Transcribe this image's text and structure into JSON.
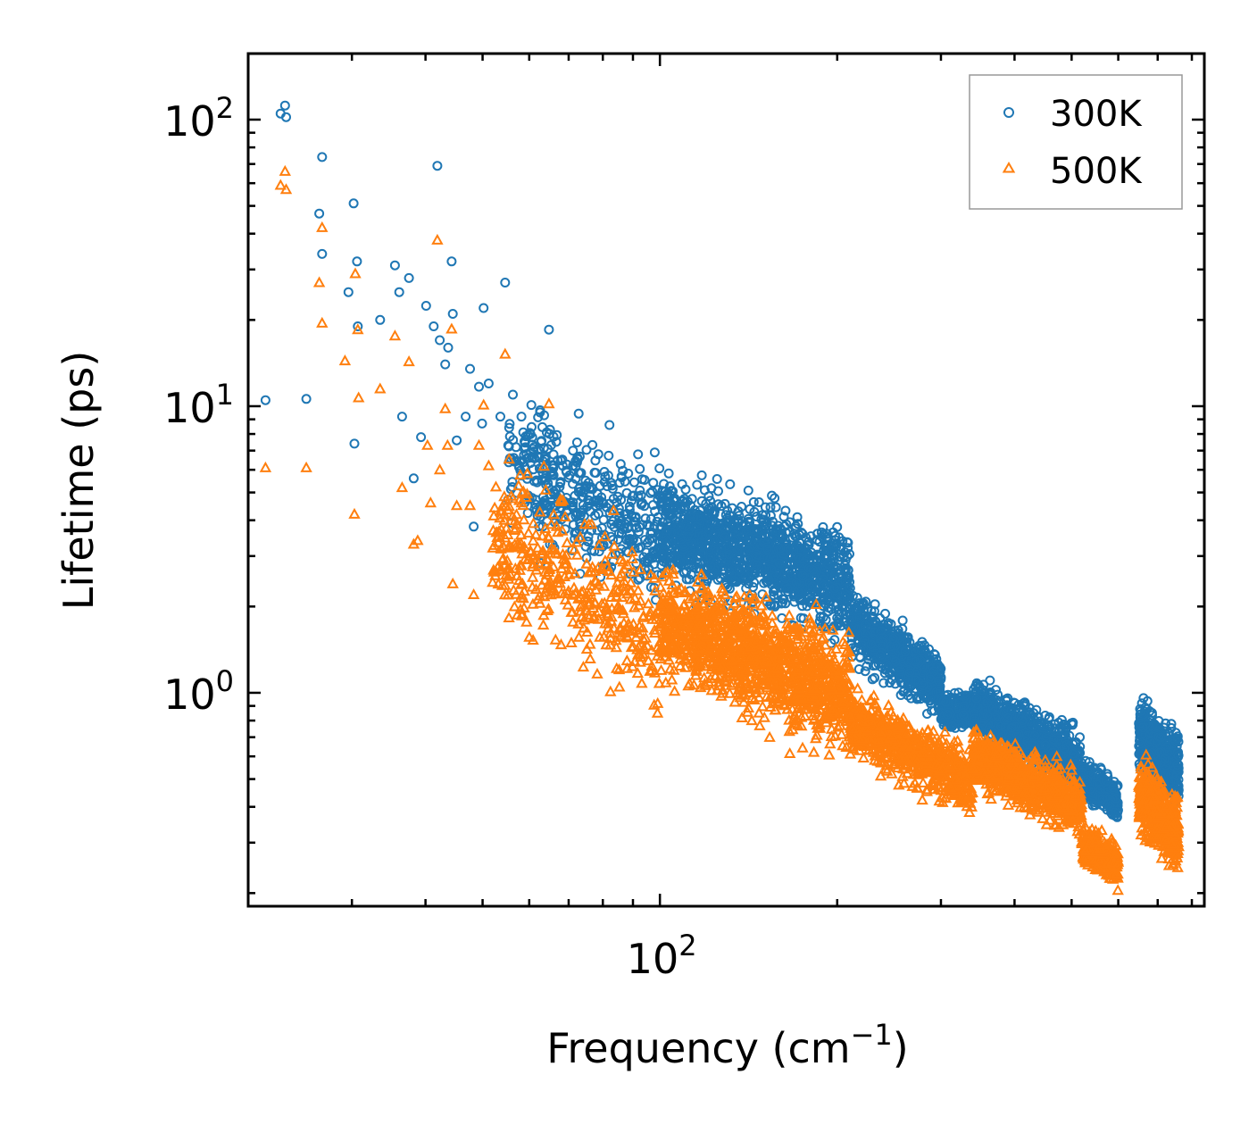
{
  "chart_data": {
    "type": "scatter",
    "xscale": "log",
    "yscale": "log",
    "xlim": [
      20,
      840
    ],
    "ylim": [
      0.18,
      170
    ],
    "xlabel": {
      "text": "Frequency (cm",
      "sup": "−1",
      "suffix": ")"
    },
    "ylabel": "Lifetime (ps)",
    "xticks": [
      {
        "base": "10",
        "exp": "2",
        "value": 100
      }
    ],
    "yticks": [
      {
        "base": "10",
        "exp": "0",
        "value": 1
      },
      {
        "base": "10",
        "exp": "1",
        "value": 10
      },
      {
        "base": "10",
        "exp": "2",
        "value": 100
      }
    ],
    "legend": {
      "position": "top-right"
    },
    "series": [
      {
        "name": "300K",
        "marker": "circle",
        "color": "#1f77b4",
        "points": [
          [
            21.4,
            10.5
          ],
          [
            22.7,
            105
          ],
          [
            23.1,
            112
          ],
          [
            23.2,
            102
          ],
          [
            25.1,
            10.6
          ],
          [
            26.7,
            74
          ],
          [
            26.4,
            47
          ],
          [
            26.7,
            34
          ],
          [
            29.6,
            25
          ],
          [
            30.2,
            51
          ],
          [
            30.3,
            7.4
          ],
          [
            30.6,
            32
          ],
          [
            30.7,
            19
          ],
          [
            33.5,
            20
          ],
          [
            35.5,
            31
          ],
          [
            36.5,
            9.2
          ],
          [
            36.1,
            25
          ],
          [
            37.5,
            28
          ],
          [
            38.2,
            5.6
          ],
          [
            39.3,
            7.8
          ],
          [
            40.1,
            22.4
          ],
          [
            41.3,
            19
          ],
          [
            41.9,
            69
          ],
          [
            42.3,
            17
          ],
          [
            43.2,
            14
          ],
          [
            43.7,
            16
          ],
          [
            44.3,
            32
          ],
          [
            44.5,
            21
          ],
          [
            45.2,
            7.6
          ],
          [
            46.8,
            9.2
          ],
          [
            47.6,
            13.5
          ],
          [
            48.3,
            3.8
          ],
          [
            49.3,
            11.7
          ],
          [
            49.9,
            8.7
          ],
          [
            50.2,
            22
          ],
          [
            51.2,
            12
          ],
          [
            53.6,
            9.2
          ],
          [
            54.6,
            27
          ],
          [
            58.2,
            9.2
          ],
          [
            60.5,
            10.1
          ],
          [
            63.6,
            9.3
          ],
          [
            64.8,
            18.5
          ],
          [
            71.2,
            6.2
          ],
          [
            78.6,
            6.8
          ],
          [
            80.5,
            5.9
          ],
          [
            82.1,
            8.6
          ],
          [
            98,
            6.9
          ]
        ],
        "bulk": [
          {
            "xRange": [
              55,
              100
            ],
            "logYCenter": [
              0.8,
              0.55
            ],
            "logYSpread": 0.22,
            "count": 420
          },
          {
            "xRange": [
              100,
              210
            ],
            "logYCenter": [
              0.58,
              0.38
            ],
            "logYSpread": 0.16,
            "count": 1300
          },
          {
            "xRange": [
              210,
              300
            ],
            "logYCenter": [
              0.25,
              0.02
            ],
            "logYSpread": 0.1,
            "count": 650
          },
          {
            "xRange": [
              300,
              340
            ],
            "logYCenter": [
              -0.06,
              -0.06
            ],
            "logYSpread": 0.05,
            "count": 220
          },
          {
            "xRange": [
              340,
              520
            ],
            "logYCenter": [
              -0.05,
              -0.24
            ],
            "logYSpread": 0.09,
            "count": 820
          },
          {
            "xRange": [
              520,
              600
            ],
            "logYCenter": [
              -0.3,
              -0.38
            ],
            "logYSpread": 0.06,
            "count": 260
          },
          {
            "xRange": [
              650,
              760
            ],
            "logYCenter": [
              -0.15,
              -0.28
            ],
            "logYSpread": 0.11,
            "count": 520
          }
        ]
      },
      {
        "name": "500K",
        "marker": "triangle",
        "color": "#ff7f0e",
        "points": [
          [
            21.4,
            6.1
          ],
          [
            22.7,
            59
          ],
          [
            23.1,
            66
          ],
          [
            23.2,
            57
          ],
          [
            25.1,
            6.1
          ],
          [
            26.4,
            27
          ],
          [
            26.7,
            42
          ],
          [
            26.7,
            19.5
          ],
          [
            29.2,
            14.4
          ],
          [
            30.3,
            4.2
          ],
          [
            30.4,
            29
          ],
          [
            30.7,
            18.5
          ],
          [
            30.8,
            10.7
          ],
          [
            33.5,
            11.5
          ],
          [
            35.5,
            17.6
          ],
          [
            36.5,
            5.2
          ],
          [
            37.5,
            14.3
          ],
          [
            38.2,
            3.3
          ],
          [
            38.8,
            3.4
          ],
          [
            40.3,
            7.3
          ],
          [
            40.8,
            4.6
          ],
          [
            41.9,
            38
          ],
          [
            42.3,
            6
          ],
          [
            43.2,
            9.8
          ],
          [
            43.6,
            7.3
          ],
          [
            44.3,
            18.6
          ],
          [
            44.5,
            2.4
          ],
          [
            45.2,
            4.5
          ],
          [
            47.6,
            4.5
          ],
          [
            48.3,
            2.2
          ],
          [
            49.3,
            7.3
          ],
          [
            50.2,
            10.1
          ],
          [
            51.2,
            6.2
          ],
          [
            54.6,
            15.2
          ],
          [
            58.2,
            4.6
          ],
          [
            64.8,
            10.2
          ]
        ],
        "bulk": [
          {
            "xRange": [
              52,
              100
            ],
            "logYCenter": [
              0.55,
              0.18
            ],
            "logYSpread": 0.24,
            "count": 420
          },
          {
            "xRange": [
              100,
              210
            ],
            "logYCenter": [
              0.25,
              0.0
            ],
            "logYSpread": 0.18,
            "count": 1300
          },
          {
            "xRange": [
              210,
              340
            ],
            "logYCenter": [
              -0.1,
              -0.32
            ],
            "logYSpread": 0.1,
            "count": 760
          },
          {
            "xRange": [
              340,
              520
            ],
            "logYCenter": [
              -0.22,
              -0.4
            ],
            "logYSpread": 0.09,
            "count": 820
          },
          {
            "xRange": [
              520,
              600
            ],
            "logYCenter": [
              -0.52,
              -0.6
            ],
            "logYSpread": 0.06,
            "count": 260
          },
          {
            "xRange": [
              650,
              760
            ],
            "logYCenter": [
              -0.35,
              -0.5
            ],
            "logYSpread": 0.11,
            "count": 520
          }
        ]
      }
    ]
  }
}
